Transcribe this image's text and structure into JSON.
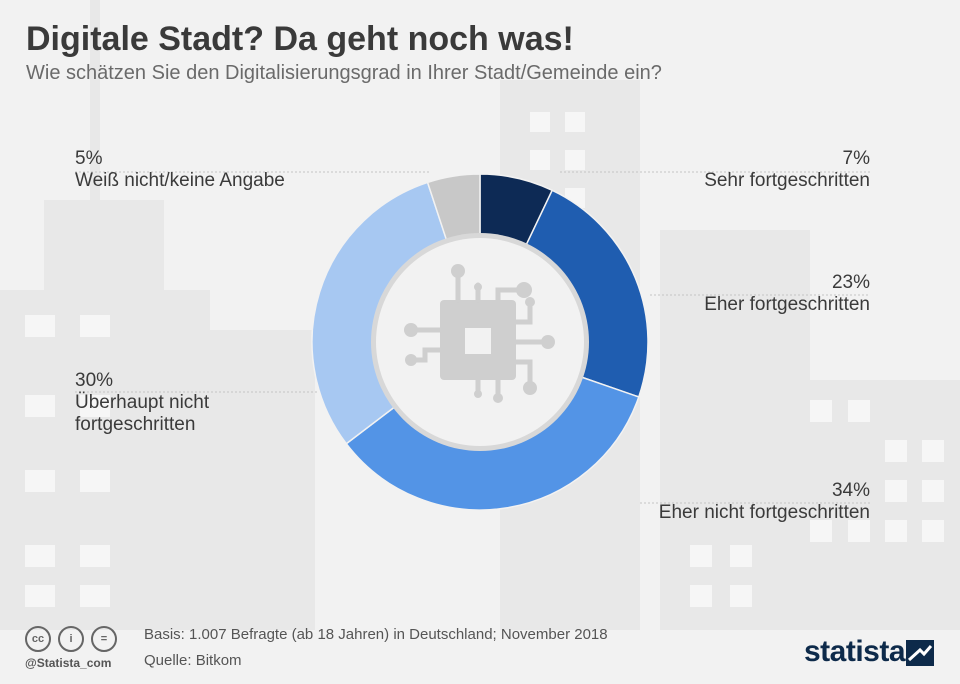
{
  "header": {
    "title": "Digitale Stadt? Da geht noch was!",
    "subtitle": "Wie schätzen Sie den Digitalisierungsgrad in Ihrer Stadt/Gemeinde ein?"
  },
  "chart_data": {
    "type": "pie",
    "variant": "donut",
    "categories": [
      "Sehr fortgeschritten",
      "Eher fortgeschritten",
      "Eher nicht fortgeschritten",
      "Überhaupt nicht fortgeschritten",
      "Weiß nicht/keine Angabe"
    ],
    "values": [
      7,
      23,
      34,
      30,
      5
    ],
    "value_labels": [
      "7%",
      "23%",
      "34%",
      "30%",
      "5%"
    ],
    "colors": [
      "#0d2a55",
      "#1f5db0",
      "#5394e6",
      "#a7c8f2",
      "#c8c8c8"
    ],
    "title": "Digitale Stadt? Da geht noch was!"
  },
  "labels": {
    "sehr_pct": "7%",
    "sehr": "Sehr fortgeschritten",
    "eher_pct": "23%",
    "eher": "Eher fortgeschritten",
    "ehernicht_pct": "34%",
    "ehernicht": "Eher nicht fortgeschritten",
    "ueberhaupt_pct": "30%",
    "ueberhaupt_1": "Überhaupt nicht",
    "ueberhaupt_2": "fortgeschritten",
    "weiss_pct": "5%",
    "weiss": "Weiß nicht/keine Angabe"
  },
  "footer": {
    "basis": "Basis: 1.007 Befragte (ab 18 Jahren) in Deutschland; November 2018",
    "quelle": "Quelle: Bitkom",
    "handle": "@Statista_com",
    "cc": "cc",
    "by": "i",
    "nd": "=",
    "logo": "statista"
  },
  "icons": {
    "center": "chip-icon"
  }
}
